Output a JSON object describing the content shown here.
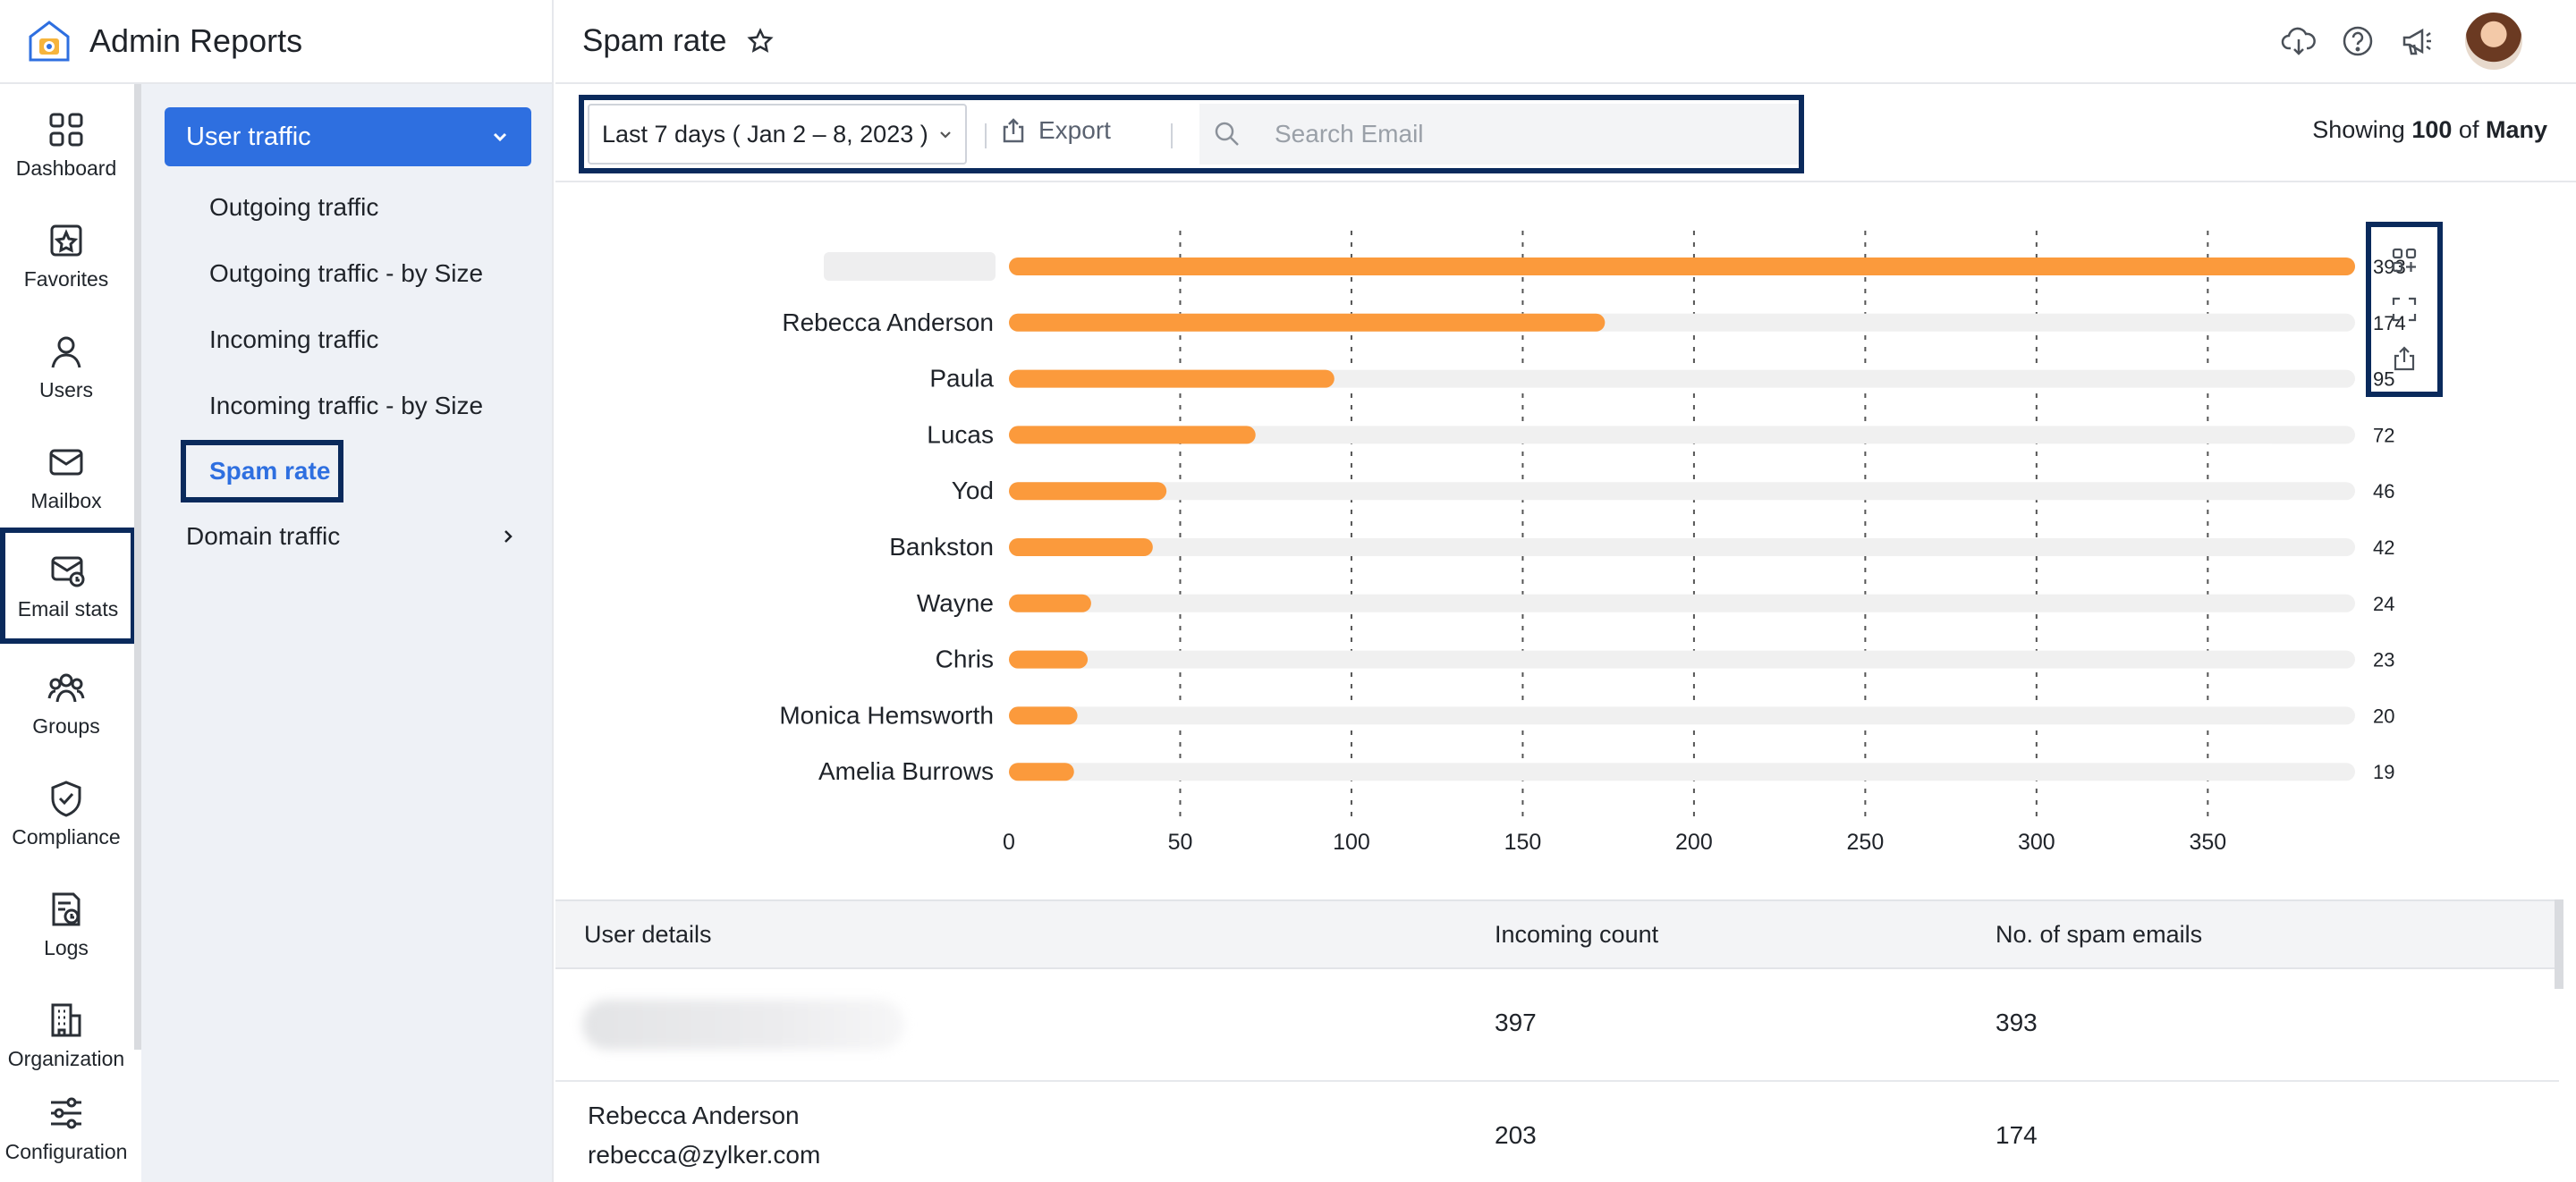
{
  "brand": {
    "title": "Admin Reports"
  },
  "rail": {
    "items": [
      {
        "label": "Dashboard",
        "icon": "grid-icon"
      },
      {
        "label": "Favorites",
        "icon": "favorites-icon"
      },
      {
        "label": "Users",
        "icon": "user-icon"
      },
      {
        "label": "Mailbox",
        "icon": "mailbox-icon"
      },
      {
        "label": "Email stats",
        "icon": "email-stats-icon",
        "active": true
      },
      {
        "label": "Groups",
        "icon": "groups-icon"
      },
      {
        "label": "Compliance",
        "icon": "shield-icon"
      },
      {
        "label": "Logs",
        "icon": "logs-icon"
      },
      {
        "label": "Organization",
        "icon": "building-icon"
      },
      {
        "label": "Configuration",
        "icon": "sliders-icon"
      }
    ]
  },
  "subnav": {
    "section": "User traffic",
    "items": [
      "Outgoing traffic",
      "Outgoing traffic - by Size",
      "Incoming traffic",
      "Incoming traffic - by Size"
    ],
    "selected": "Spam rate",
    "domain": "Domain traffic"
  },
  "header": {
    "title": "Spam rate"
  },
  "toolbar": {
    "date_range": "Last 7 days ( Jan 2 – 8, 2023 )",
    "export_label": "Export",
    "search_placeholder": "Search Email",
    "showing_prefix": "Showing",
    "showing_count": "100",
    "showing_of": "of",
    "showing_total": "Many"
  },
  "colors": {
    "accent": "#2e6fe0",
    "bar": "#fb9a3c",
    "track": "#f0f0f0",
    "highlight": "#0a2a5c"
  },
  "chart_data": {
    "type": "bar",
    "orientation": "horizontal",
    "categories": [
      "",
      "Rebecca Anderson",
      "Paula",
      "Lucas",
      "Yod",
      "Bankston",
      "Wayne",
      "Chris",
      "Monica Hemsworth",
      "Amelia Burrows"
    ],
    "values": [
      393,
      174,
      95,
      72,
      46,
      42,
      24,
      23,
      20,
      19
    ],
    "xticks": [
      0,
      50,
      100,
      150,
      200,
      250,
      300,
      350
    ],
    "xlim": [
      0,
      393
    ],
    "grid": "vertical dashed"
  },
  "table": {
    "headers": [
      "User details",
      "Incoming count",
      "No. of spam emails"
    ],
    "rows": [
      {
        "name": "",
        "email": "",
        "incoming": "397",
        "spam": "393"
      },
      {
        "name": "Rebecca Anderson",
        "email": "rebecca@zylker.com",
        "incoming": "203",
        "spam": "174"
      }
    ]
  }
}
